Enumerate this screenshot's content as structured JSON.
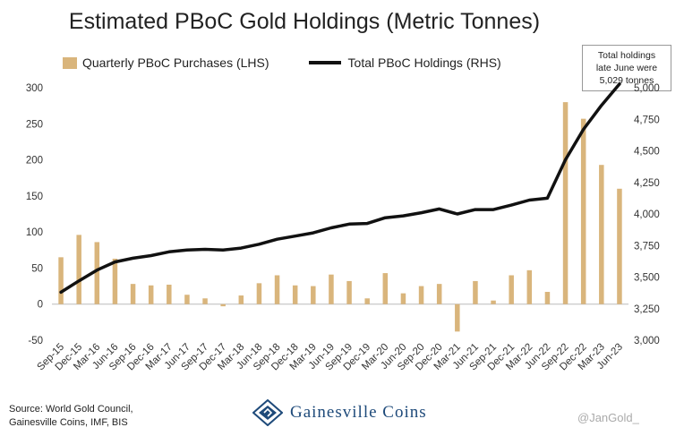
{
  "chart_data": {
    "type": "bar+line",
    "title": "Estimated PBoC Gold Holdings (Metric Tonnes)",
    "categories": [
      "Sep-15",
      "Dec-15",
      "Mar-16",
      "Jun-16",
      "Sep-16",
      "Dec-16",
      "Mar-17",
      "Jun-17",
      "Sep-17",
      "Dec-17",
      "Mar-18",
      "Jun-18",
      "Sep-18",
      "Dec-18",
      "Mar-19",
      "Jun-19",
      "Sep-19",
      "Dec-19",
      "Mar-20",
      "Jun-20",
      "Sep-20",
      "Dec-20",
      "Mar-21",
      "Jun-21",
      "Sep-21",
      "Dec-21",
      "Mar-22",
      "Jun-22",
      "Sep-22",
      "Dec-22",
      "Mar-23",
      "Jun-23"
    ],
    "series": [
      {
        "name": "Quarterly PBoC Purchases (LHS)",
        "type": "bar",
        "axis": "left",
        "color": "#D9B57C",
        "values": [
          65,
          96,
          86,
          63,
          28,
          26,
          27,
          13,
          8,
          -3,
          12,
          29,
          40,
          26,
          25,
          41,
          32,
          8,
          43,
          15,
          25,
          28,
          -38,
          32,
          5,
          40,
          47,
          17,
          280,
          257,
          193,
          160
        ]
      },
      {
        "name": "Total PBoC Holdings (RHS)",
        "type": "line",
        "axis": "right",
        "color": "#111111",
        "values": [
          3380,
          3470,
          3555,
          3620,
          3650,
          3670,
          3700,
          3715,
          3720,
          3715,
          3730,
          3760,
          3800,
          3825,
          3850,
          3890,
          3920,
          3925,
          3970,
          3985,
          4010,
          4040,
          4000,
          4035,
          4035,
          4070,
          4110,
          4125,
          4430,
          4670,
          4860,
          5029
        ]
      }
    ],
    "y_left": {
      "ticks": [
        "300",
        "250",
        "200",
        "150",
        "100",
        "50",
        "0",
        "-50"
      ],
      "min": -50,
      "max": 300
    },
    "y_right": {
      "ticks": [
        "5,000",
        "4,750",
        "4,500",
        "4,250",
        "4,000",
        "3,750",
        "3,500",
        "3,250",
        "3,000"
      ],
      "min": 3000,
      "max": 5000
    },
    "legend_position": "top"
  },
  "note": {
    "line1": "Total holdings",
    "line2": "late June were",
    "line3": "5,029 tonnes"
  },
  "source": {
    "line1": "Source: World Gold Council,",
    "line2": "Gainesville Coins, IMF, BIS"
  },
  "brand": {
    "name": "Gainesville Coins"
  },
  "handle": "@JanGold_"
}
